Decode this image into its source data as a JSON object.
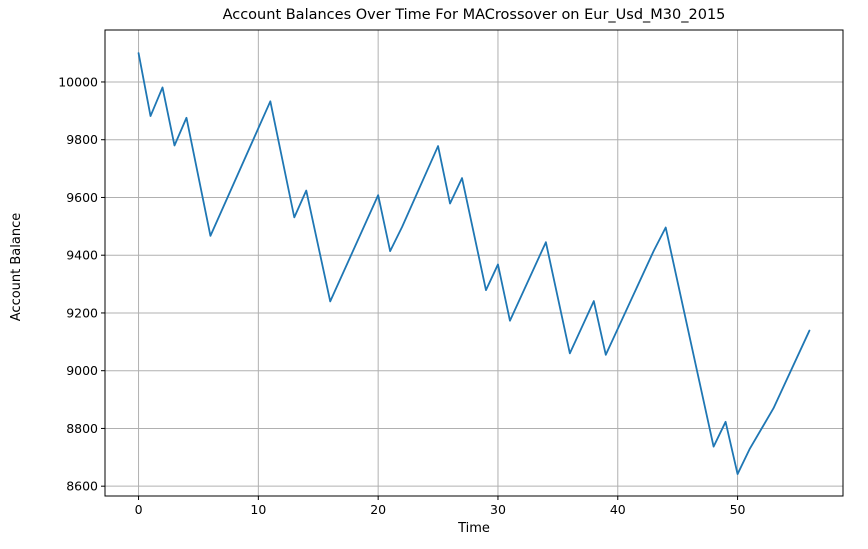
{
  "chart_data": {
    "type": "line",
    "title": "Account Balances Over Time For MACrossover on Eur_Usd_M30_2015",
    "xlabel": "Time",
    "ylabel": "Account Balance",
    "xlim": [
      -2.8,
      58.8
    ],
    "ylim": [
      8566,
      10180
    ],
    "x_ticks": [
      0,
      10,
      20,
      30,
      40,
      50
    ],
    "y_ticks": [
      8600,
      8800,
      9000,
      9200,
      9400,
      9600,
      9800,
      10000
    ],
    "grid": true,
    "legend": "none",
    "series": [
      {
        "color": "#1f77b4",
        "points": [
          [
            0,
            10100
          ],
          [
            1,
            9882
          ],
          [
            2,
            9981
          ],
          [
            3,
            9780
          ],
          [
            4,
            9876
          ],
          [
            6,
            9467
          ],
          [
            11,
            9933
          ],
          [
            13,
            9531
          ],
          [
            14,
            9624
          ],
          [
            16,
            9240
          ],
          [
            20,
            9608
          ],
          [
            21,
            9414
          ],
          [
            22,
            9498
          ],
          [
            25,
            9778
          ],
          [
            26,
            9579
          ],
          [
            27,
            9667
          ],
          [
            29,
            9279
          ],
          [
            30,
            9368
          ],
          [
            31,
            9173
          ],
          [
            34,
            9445
          ],
          [
            36,
            9060
          ],
          [
            38,
            9241
          ],
          [
            39,
            9055
          ],
          [
            43,
            9415
          ],
          [
            44,
            9496
          ],
          [
            48,
            8737
          ],
          [
            49,
            8823
          ],
          [
            50,
            8642
          ],
          [
            51,
            8728
          ],
          [
            53,
            8870
          ],
          [
            56,
            9139
          ]
        ]
      }
    ],
    "colors": {
      "grid": "#b0b0b0",
      "axes": "#000000"
    }
  }
}
